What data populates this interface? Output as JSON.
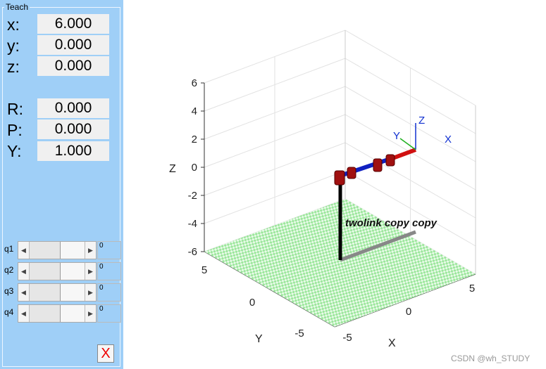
{
  "panel": {
    "title": "Teach",
    "position": [
      {
        "label": "x:",
        "value": "6.000"
      },
      {
        "label": "y:",
        "value": "0.000"
      },
      {
        "label": "z:",
        "value": "0.000"
      }
    ],
    "orientation": [
      {
        "label": "R:",
        "value": "0.000"
      },
      {
        "label": "P:",
        "value": "0.000"
      },
      {
        "label": "Y:",
        "value": "1.000"
      }
    ],
    "sliders": [
      {
        "label": "q1",
        "value": "0"
      },
      {
        "label": "q2",
        "value": "0"
      },
      {
        "label": "q3",
        "value": "0"
      },
      {
        "label": "q4",
        "value": "0"
      }
    ],
    "close": "X"
  },
  "plot": {
    "zlabel": "Z",
    "ylabel": "Y",
    "xlabel": "X",
    "zticks": [
      "6",
      "4",
      "2",
      "0",
      "-2",
      "-4",
      "-6"
    ],
    "yticks": [
      "5",
      "0",
      "-5"
    ],
    "xticks": [
      "-5",
      "0",
      "5"
    ],
    "robot_name": "twolink copy copy",
    "frame": {
      "x": "X",
      "y": "Y",
      "z": "Z"
    }
  },
  "watermark": "CSDN @wh_STUDY"
}
